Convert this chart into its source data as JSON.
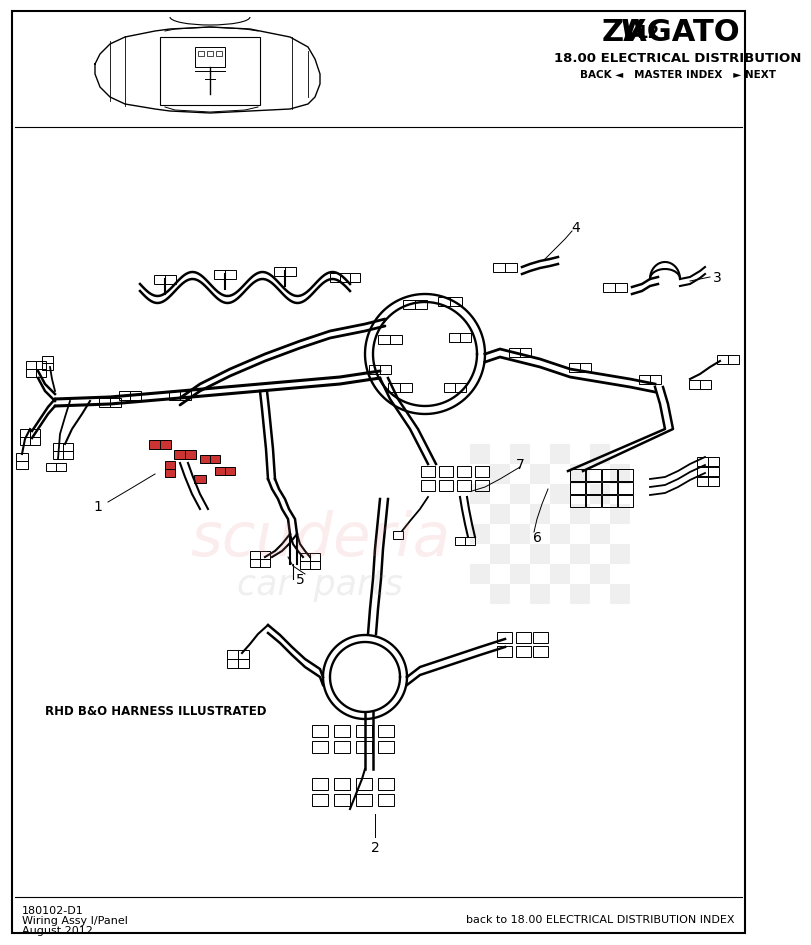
{
  "bg_color": "#ffffff",
  "section_title": "18.00 ELECTRICAL DISTRIBUTION",
  "nav_text": "BACK ◄   MASTER INDEX   ► NEXT",
  "footer_left_line1": "180102-D1",
  "footer_left_line2": "Wiring Assy I/Panel",
  "footer_left_line3": "August 2012",
  "footer_right": "back to 18.00 ELECTRICAL DISTRIBUTION INDEX",
  "note_text": "RHD B&O HARNESS ILLUSTRATED",
  "border_color": "#000000",
  "watermark_pink": "#e88888",
  "watermark_gray": "#999999",
  "checker_gray": "#cccccc"
}
